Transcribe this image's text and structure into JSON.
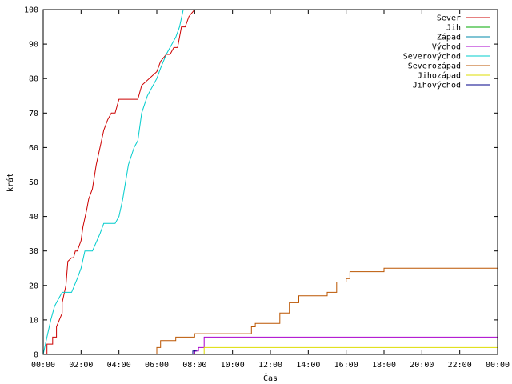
{
  "chart_data": {
    "type": "line",
    "title": "",
    "xlabel": "Čas",
    "ylabel": "krát",
    "xlim": [
      0,
      24
    ],
    "ylim": [
      0,
      100
    ],
    "x_ticks": [
      "00:00",
      "02:00",
      "04:00",
      "06:00",
      "08:00",
      "10:00",
      "12:00",
      "14:00",
      "16:00",
      "18:00",
      "20:00",
      "22:00",
      "00:00"
    ],
    "y_ticks": [
      0,
      10,
      20,
      30,
      40,
      50,
      60,
      70,
      80,
      90,
      100
    ],
    "legend_position": "top-right",
    "series": [
      {
        "name": "Sever",
        "color": "#cc0000",
        "x": [
          0.2,
          0.2,
          0.5,
          0.5,
          0.7,
          0.7,
          1.0,
          1.0,
          1.2,
          1.3,
          1.5,
          1.6,
          1.7,
          1.8,
          2.0,
          2.1,
          2.3,
          2.4,
          2.6,
          2.8,
          3.0,
          3.2,
          3.4,
          3.6,
          3.8,
          4.0,
          4.2,
          4.4,
          5.0,
          5.2,
          6.0,
          6.2,
          6.5,
          6.7,
          6.9,
          7.1,
          7.3,
          7.5,
          7.7,
          8.0,
          8.2,
          8.5,
          8.6,
          8.8
        ],
        "y": [
          0,
          3,
          3,
          5,
          5,
          8,
          12,
          15,
          20,
          27,
          28,
          28,
          30,
          30,
          33,
          37,
          42,
          45,
          48,
          55,
          60,
          65,
          68,
          70,
          70,
          74,
          74,
          74,
          74,
          78,
          82,
          85,
          87,
          87,
          89,
          89,
          95,
          95,
          98,
          100,
          100,
          100,
          100,
          100
        ]
      },
      {
        "name": "Jih",
        "color": "#00aa00",
        "x": [],
        "y": []
      },
      {
        "name": "Západ",
        "color": "#0088aa",
        "x": [],
        "y": []
      },
      {
        "name": "Východ",
        "color": "#aa00cc",
        "x": [
          8.0,
          8.0,
          8.2,
          8.2,
          8.5,
          8.5,
          24.0
        ],
        "y": [
          0,
          1,
          1,
          2,
          2,
          5,
          5
        ]
      },
      {
        "name": "Severovýchod",
        "color": "#00cccc",
        "x": [
          0.0,
          0.2,
          0.4,
          0.6,
          0.8,
          1.0,
          1.2,
          1.5,
          1.8,
          2.0,
          2.2,
          2.4,
          2.6,
          3.0,
          3.2,
          3.4,
          3.6,
          3.8,
          4.0,
          4.2,
          4.5,
          4.8,
          5.0,
          5.2,
          5.5,
          5.8,
          6.0,
          6.2,
          6.5,
          6.8,
          7.0,
          7.2,
          7.4,
          7.6
        ],
        "y": [
          0,
          5,
          10,
          14,
          16,
          18,
          18,
          18,
          22,
          25,
          30,
          30,
          30,
          35,
          38,
          38,
          38,
          38,
          40,
          45,
          55,
          60,
          62,
          70,
          75,
          78,
          80,
          83,
          87,
          90,
          92,
          95,
          100,
          100
        ]
      },
      {
        "name": "Severozápad",
        "color": "#bb5500",
        "x": [
          6.0,
          6.0,
          6.2,
          6.2,
          7.0,
          7.0,
          8.0,
          8.0,
          11.0,
          11.0,
          11.2,
          11.2,
          12.5,
          12.5,
          13.0,
          13.0,
          13.5,
          13.5,
          14.0,
          14.0,
          15.0,
          15.0,
          15.5,
          15.5,
          16.0,
          16.0,
          16.2,
          16.2,
          17.0,
          17.0,
          18.0,
          18.0,
          24.0
        ],
        "y": [
          0,
          2,
          2,
          4,
          4,
          5,
          5,
          6,
          6,
          8,
          8,
          9,
          9,
          12,
          12,
          15,
          15,
          17,
          17,
          17,
          17,
          18,
          18,
          21,
          21,
          22,
          22,
          24,
          24,
          24,
          24,
          25,
          25
        ]
      },
      {
        "name": "Jihozápad",
        "color": "#dddd00",
        "x": [
          8.5,
          8.5,
          24.0
        ],
        "y": [
          0,
          2,
          2
        ]
      },
      {
        "name": "Jihovýchod",
        "color": "#000088",
        "x": [
          7.9,
          7.9,
          8.1,
          8.1
        ],
        "y": [
          0,
          1,
          1,
          1
        ]
      }
    ]
  }
}
